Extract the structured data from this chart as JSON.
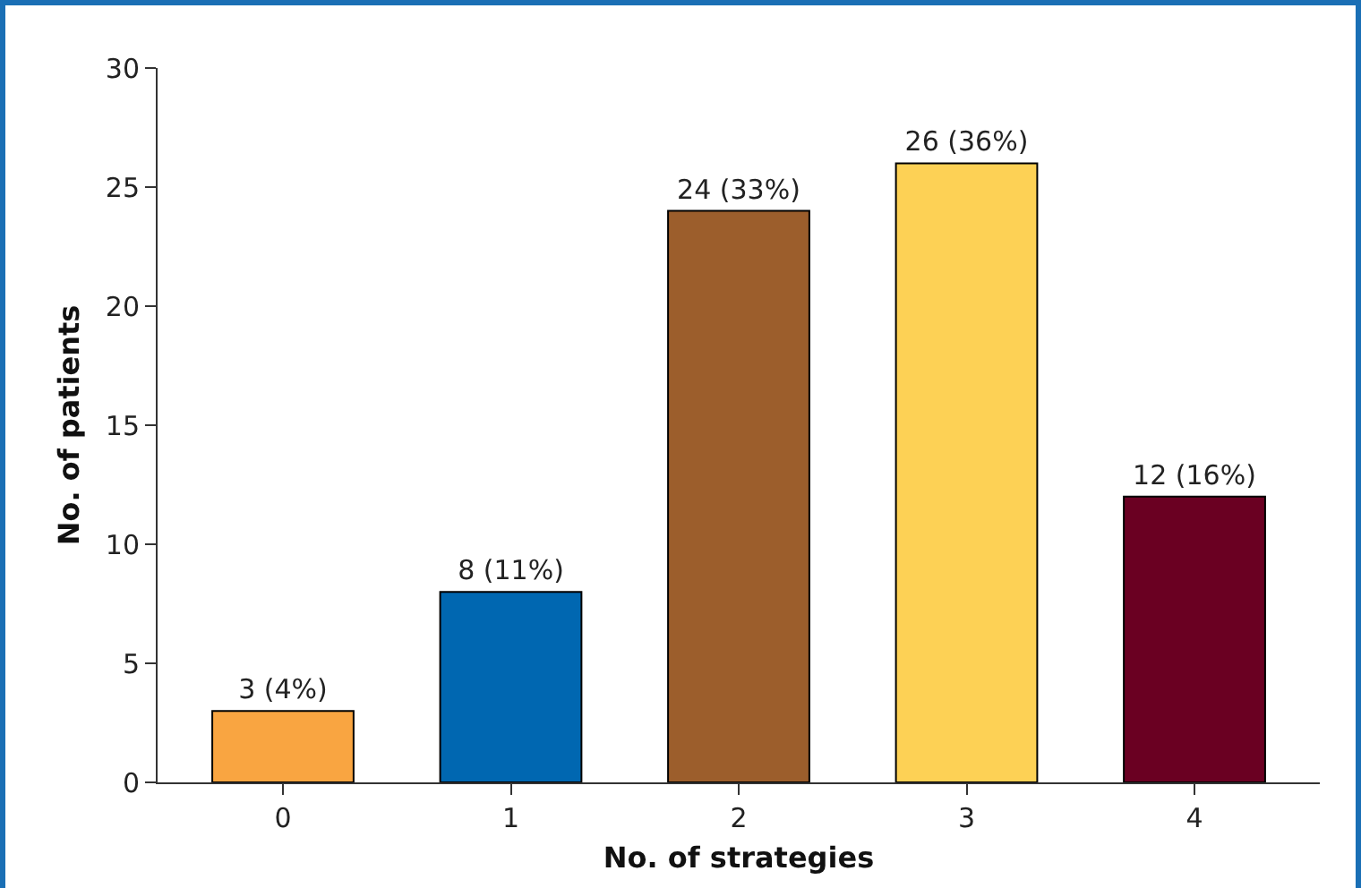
{
  "chart_data": {
    "type": "bar",
    "xlabel": "No. of strategies",
    "ylabel": "No. of patients",
    "categories": [
      "0",
      "1",
      "2",
      "3",
      "4"
    ],
    "values": [
      3,
      8,
      24,
      26,
      12
    ],
    "colors": [
      "#f9a541",
      "#0067b1",
      "#9c5e2c",
      "#fdd155",
      "#6a0022"
    ],
    "value_labels": [
      "3 (4%)",
      "8 (11%)",
      "24 (33%)",
      "26 (36%)",
      "12 (16%)"
    ],
    "ylim": [
      0,
      30
    ],
    "yticks": [
      0,
      5,
      10,
      15,
      20,
      25,
      30
    ],
    "grid": false
  }
}
